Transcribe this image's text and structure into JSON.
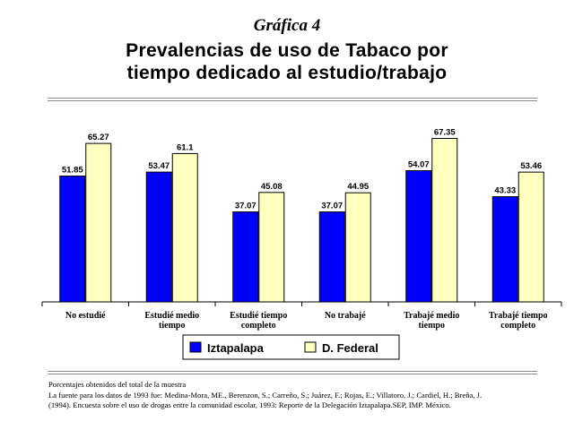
{
  "header": {
    "kicker": "Gráfica 4",
    "title_line1": "Prevalencias de uso de Tabaco por",
    "title_line2": "tiempo dedicado al estudio/trabajo"
  },
  "chart_data": {
    "type": "bar",
    "categories": [
      [
        "No estudié"
      ],
      [
        "Estudié medio",
        "tiempo"
      ],
      [
        "Estudié tiempo",
        "completo"
      ],
      [
        "No trabajé"
      ],
      [
        "Trabajé medio",
        "tiempo"
      ],
      [
        "Trabajé tiempo",
        "completo"
      ]
    ],
    "series": [
      {
        "name": "Iztapalapa",
        "color": "#0000ff",
        "values": [
          51.85,
          53.47,
          37.07,
          37.07,
          54.07,
          43.33
        ],
        "labels": [
          "51.85",
          "53.47",
          "37.07",
          "37.07",
          "54.07",
          "43.33"
        ]
      },
      {
        "name": "D. Federal",
        "color": "#ffffc0",
        "values": [
          65.27,
          61.1,
          45.08,
          44.95,
          67.35,
          53.46
        ],
        "labels": [
          "65.27",
          "61.1",
          "45.08",
          "44.95",
          "67.35",
          "53.46"
        ]
      }
    ],
    "ylim": [
      0,
      100
    ],
    "grid": false,
    "legend_position": "bottom"
  },
  "notes": {
    "line1": "Porcentajes obtenidos del total de la muestra",
    "line2": "La fuente para los datos de 1993 fue: Medina-Mora, ME., Berenzon, S.; Carreño, S.; Juárez, F.; Rojas, E.; Villatoro, J.; Cardiel, H.; Breña, J.",
    "line3": "(1994). Encuesta sobre el uso de drogas entre la comunidad escolar, 1993: Reporte de la Delegación Iztapalapa.SEP, IMP. México."
  }
}
